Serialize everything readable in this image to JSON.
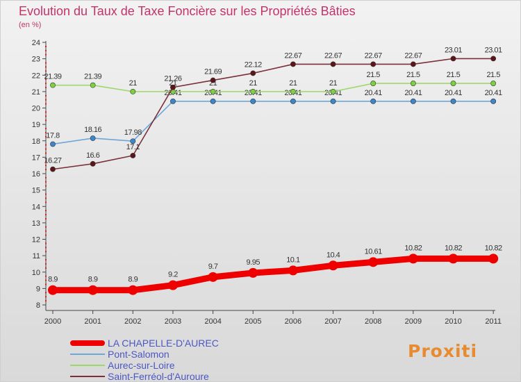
{
  "chart_data": {
    "type": "line",
    "title": "Evolution du Taux de Taxe Foncière sur les Propriétés Bâties",
    "subtitle": "(en %)",
    "xlabel": "",
    "ylabel": "",
    "categories": [
      "2000",
      "2001",
      "2002",
      "2003",
      "2004",
      "2005",
      "2006",
      "2007",
      "2008",
      "2009",
      "2010",
      "2011"
    ],
    "ylim": [
      8,
      24
    ],
    "yticks": [
      8,
      9,
      10,
      11,
      12,
      13,
      14,
      15,
      16,
      17,
      18,
      19,
      20,
      21,
      22,
      23,
      24
    ],
    "grid": false,
    "legend_position": "bottom-left",
    "series": [
      {
        "name": "LA CHAPELLE-D'AUREC",
        "values": [
          8.9,
          8.9,
          8.9,
          9.2,
          9.7,
          9.95,
          10.1,
          10.4,
          10.61,
          10.82,
          10.82,
          10.82
        ],
        "labels": [
          "8.9",
          "8.9",
          "8.9",
          "9.2",
          "9.7",
          "9.95",
          "10.1",
          "10.4",
          "10.61",
          "10.82",
          "10.82",
          "10.82"
        ],
        "color": "#ee0000",
        "marker": "#ee0000",
        "thick": true
      },
      {
        "name": "Pont-Salomon",
        "values": [
          17.8,
          18.16,
          17.98,
          20.41,
          20.41,
          20.41,
          20.41,
          20.41,
          20.41,
          20.41,
          20.41,
          20.41
        ],
        "labels": [
          "17.8",
          "18.16",
          "17.98",
          "20.41",
          "20.41",
          "20.41",
          "20.41",
          "20.41",
          "20.41",
          "20.41",
          "20.41",
          "20.41"
        ],
        "color": "#6da6d8",
        "marker": "#3c87cc"
      },
      {
        "name": "Aurec-sur-Loire",
        "values": [
          21.39,
          21.39,
          21,
          21,
          21,
          21,
          21,
          21,
          21.5,
          21.5,
          21.5,
          21.5
        ],
        "labels": [
          "21.39",
          "21.39",
          "21",
          "21",
          "21",
          "21",
          "21",
          "21",
          "21.5",
          "21.5",
          "21.5",
          "21.5"
        ],
        "color": "#9cd86a",
        "marker": "#7ed13e"
      },
      {
        "name": "Saint-Ferréol-d'Auroure",
        "values": [
          16.27,
          16.6,
          17.1,
          21.26,
          21.69,
          22.12,
          22.67,
          22.67,
          22.67,
          22.67,
          23.01,
          23.01
        ],
        "labels": [
          "16.27",
          "16.6",
          "17.1",
          "21.26",
          "21.69",
          "22.12",
          "22.67",
          "22.67",
          "22.67",
          "22.67",
          "23.01",
          "23.01"
        ],
        "color": "#7a3039",
        "marker": "#5c1518"
      }
    ]
  },
  "branding": {
    "logo_text": "Proxiti"
  }
}
